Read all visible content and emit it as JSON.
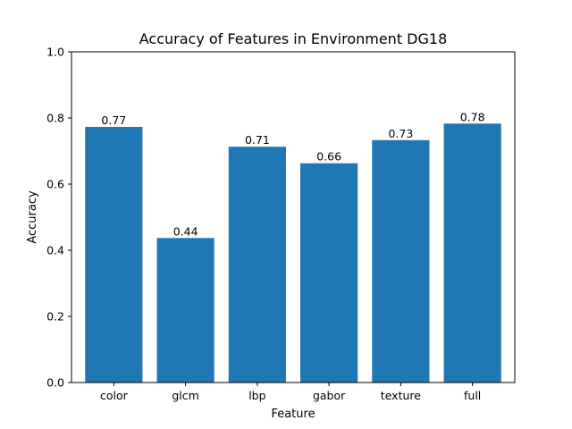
{
  "chart_data": {
    "type": "bar",
    "title": "Accuracy of Features in Environment DG18",
    "xlabel": "Feature",
    "ylabel": "Accuracy",
    "categories": [
      "color",
      "glcm",
      "lbp",
      "gabor",
      "texture",
      "full"
    ],
    "values": [
      0.773,
      0.437,
      0.713,
      0.663,
      0.733,
      0.783
    ],
    "data_labels": [
      "0.77",
      "0.44",
      "0.71",
      "0.66",
      "0.73",
      "0.78"
    ],
    "ylim": [
      0,
      1.0
    ],
    "yticks": [
      0.0,
      0.2,
      0.4,
      0.6,
      0.8,
      1.0
    ],
    "ytick_labels": [
      "0.0",
      "0.2",
      "0.4",
      "0.6",
      "0.8",
      "1.0"
    ],
    "grid": false,
    "bar_color": "#1f77b4"
  }
}
